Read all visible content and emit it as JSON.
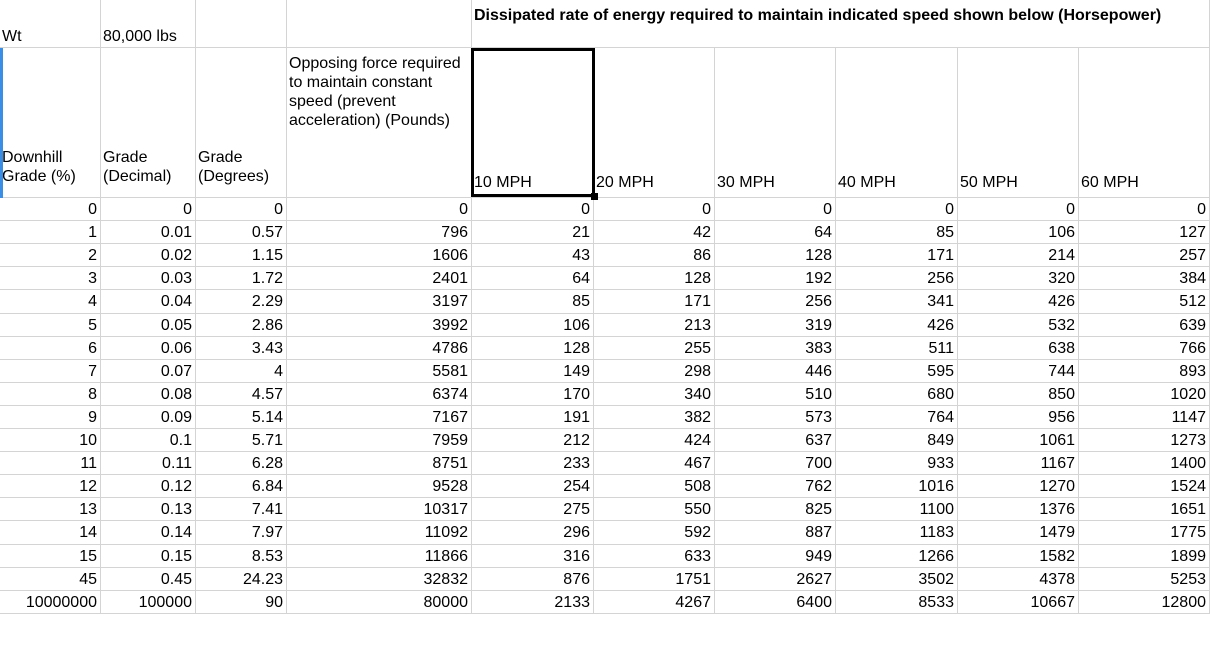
{
  "top_row": {
    "wt_label": "Wt",
    "wt_value": "80,000 lbs",
    "title": "Dissipated rate of energy required to maintain indicated speed  shown below (Horsepower)"
  },
  "headers": {
    "col_a": "Downhill Grade (%)",
    "col_b": "Grade (Decimal)",
    "col_c": "Grade (Degrees)",
    "col_d": "Opposing force required to maintain constant speed (prevent acceleration) (Pounds)",
    "speeds": [
      "10 MPH",
      "20 MPH",
      "30 MPH",
      "40 MPH",
      "50 MPH",
      "60 MPH"
    ]
  },
  "rows": [
    [
      "0",
      "0",
      "0",
      "0",
      "0",
      "0",
      "0",
      "0",
      "0",
      "0"
    ],
    [
      "1",
      "0.01",
      "0.57",
      "796",
      "21",
      "42",
      "64",
      "85",
      "106",
      "127"
    ],
    [
      "2",
      "0.02",
      "1.15",
      "1606",
      "43",
      "86",
      "128",
      "171",
      "214",
      "257"
    ],
    [
      "3",
      "0.03",
      "1.72",
      "2401",
      "64",
      "128",
      "192",
      "256",
      "320",
      "384"
    ],
    [
      "4",
      "0.04",
      "2.29",
      "3197",
      "85",
      "171",
      "256",
      "341",
      "426",
      "512"
    ],
    [
      "5",
      "0.05",
      "2.86",
      "3992",
      "106",
      "213",
      "319",
      "426",
      "532",
      "639"
    ],
    [
      "6",
      "0.06",
      "3.43",
      "4786",
      "128",
      "255",
      "383",
      "511",
      "638",
      "766"
    ],
    [
      "7",
      "0.07",
      "4",
      "5581",
      "149",
      "298",
      "446",
      "595",
      "744",
      "893"
    ],
    [
      "8",
      "0.08",
      "4.57",
      "6374",
      "170",
      "340",
      "510",
      "680",
      "850",
      "1020"
    ],
    [
      "9",
      "0.09",
      "5.14",
      "7167",
      "191",
      "382",
      "573",
      "764",
      "956",
      "1147"
    ],
    [
      "10",
      "0.1",
      "5.71",
      "7959",
      "212",
      "424",
      "637",
      "849",
      "1061",
      "1273"
    ],
    [
      "11",
      "0.11",
      "6.28",
      "8751",
      "233",
      "467",
      "700",
      "933",
      "1167",
      "1400"
    ],
    [
      "12",
      "0.12",
      "6.84",
      "9528",
      "254",
      "508",
      "762",
      "1016",
      "1270",
      "1524"
    ],
    [
      "13",
      "0.13",
      "7.41",
      "10317",
      "275",
      "550",
      "825",
      "1100",
      "1376",
      "1651"
    ],
    [
      "14",
      "0.14",
      "7.97",
      "11092",
      "296",
      "592",
      "887",
      "1183",
      "1479",
      "1775"
    ],
    [
      "15",
      "0.15",
      "8.53",
      "11866",
      "316",
      "633",
      "949",
      "1266",
      "1582",
      "1899"
    ],
    [
      "45",
      "0.45",
      "24.23",
      "32832",
      "876",
      "1751",
      "2627",
      "3502",
      "4378",
      "5253"
    ],
    [
      "10000000",
      "100000",
      "90",
      "80000",
      "2133",
      "4267",
      "6400",
      "8533",
      "10667",
      "12800"
    ]
  ]
}
